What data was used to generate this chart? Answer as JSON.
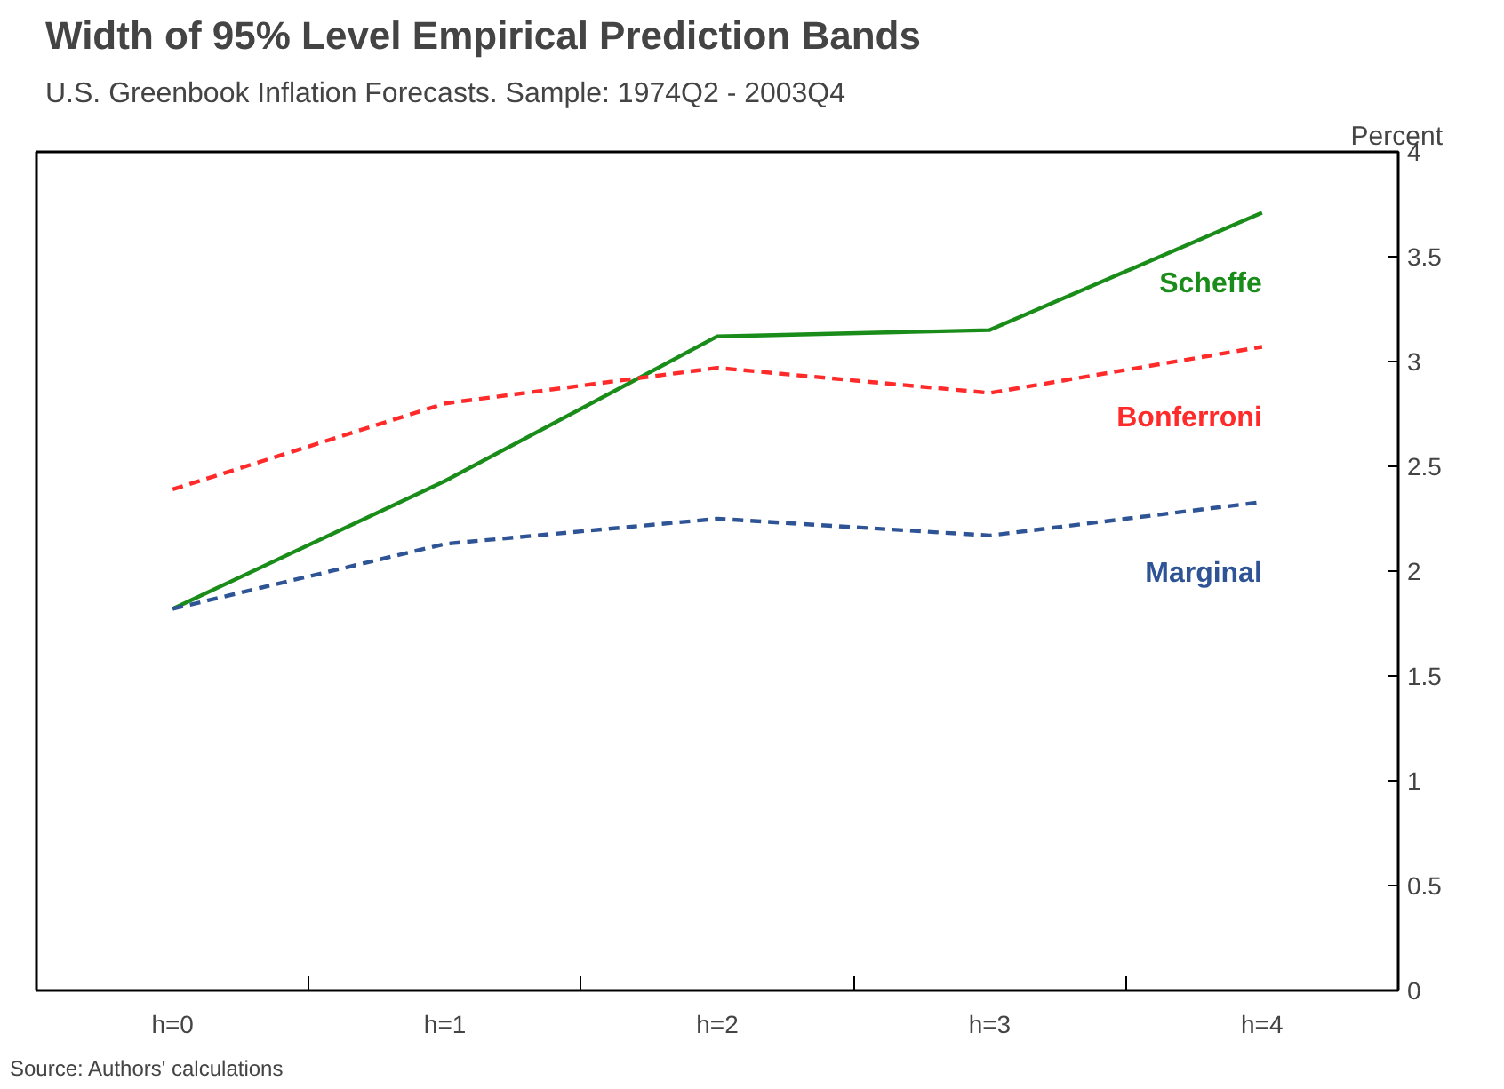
{
  "chart_data": {
    "type": "line",
    "title": "Width of 95% Level Empirical Prediction Bands",
    "subtitle": "U.S. Greenbook Inflation Forecasts. Sample: 1974Q2 - 2003Q4",
    "ylabel": "Percent",
    "categories": [
      "h=0",
      "h=1",
      "h=2",
      "h=3",
      "h=4"
    ],
    "series": [
      {
        "name": "Scheffe",
        "color": "#1a8c1a",
        "line_style": "solid",
        "values": [
          1.82,
          2.43,
          3.12,
          3.15,
          3.71
        ]
      },
      {
        "name": "Bonferroni",
        "color": "#ff2a2a",
        "line_style": "dashed",
        "values": [
          2.39,
          2.8,
          2.97,
          2.85,
          3.07
        ]
      },
      {
        "name": "Marginal",
        "color": "#2f5496",
        "line_style": "dashed",
        "values": [
          1.82,
          2.13,
          2.25,
          2.17,
          2.33
        ]
      }
    ],
    "ylim": [
      0,
      4
    ],
    "yticks": [
      0,
      0.5,
      1,
      1.5,
      2,
      2.5,
      3,
      3.5,
      4
    ],
    "grid": false,
    "annotations": [
      "Source: Authors' calculations"
    ]
  }
}
